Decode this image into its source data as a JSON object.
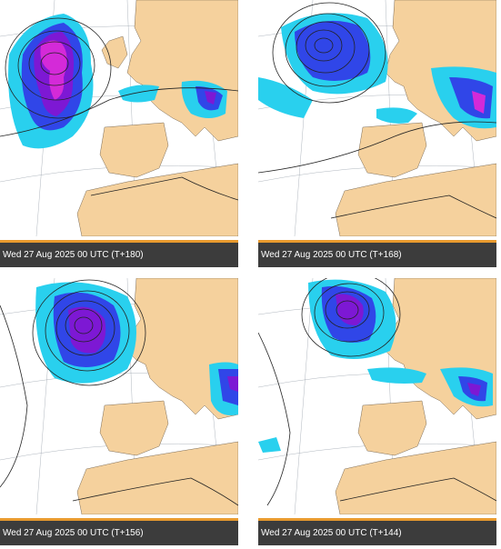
{
  "panels": [
    {
      "caption": "Wed 27 Aug 2025 00 UTC (T+180)"
    },
    {
      "caption": "Wed 27 Aug 2025 00 UTC (T+168)"
    },
    {
      "caption": "Wed 27 Aug 2025 00 UTC (T+156)"
    },
    {
      "caption": "Wed 27 Aug 2025 00 UTC (T+144)"
    }
  ],
  "colors": {
    "sea": "#ffffff",
    "land": "#f5d19d",
    "precip_light": "#29d0ee",
    "precip_moderate": "#3046e8",
    "precip_heavy": "#7d18d4",
    "precip_extreme": "#d42ad8",
    "isobar": "#222222",
    "caption_bg": "#3c3c3c",
    "caption_accent": "#e89a2e"
  }
}
